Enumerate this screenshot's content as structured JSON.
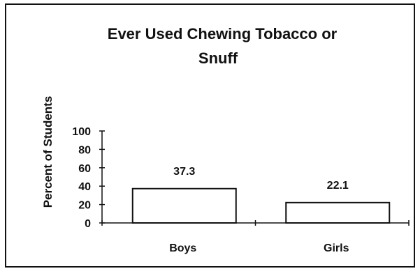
{
  "chart_data": {
    "type": "bar",
    "title": "Ever Used Chewing Tobacco or Snuff",
    "title_lines": [
      "Ever Used Chewing Tobacco or",
      "Snuff"
    ],
    "xlabel": "",
    "ylabel": "Percent of Students",
    "categories": [
      "Boys",
      "Girls"
    ],
    "values": [
      37.3,
      22.1
    ],
    "data_labels": [
      "37.3",
      "22.1"
    ],
    "ylim": [
      0,
      100
    ],
    "yticks": [
      0,
      20,
      40,
      60,
      80,
      100
    ],
    "ytick_labels": [
      "0",
      "20",
      "40",
      "60",
      "80",
      "100"
    ],
    "grid": false,
    "legend": "none",
    "colors": {
      "bar_fill": "#ffffff",
      "bar_stroke": "#111111",
      "axis": "#111111",
      "frame": "#111111"
    }
  }
}
